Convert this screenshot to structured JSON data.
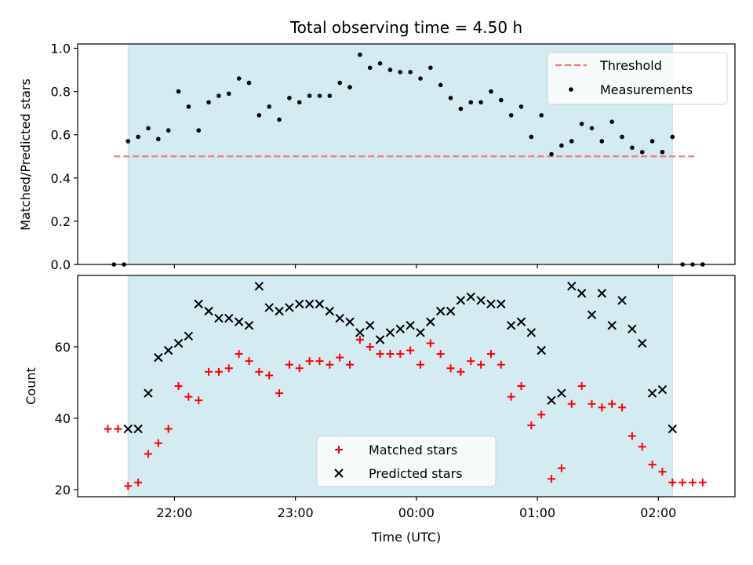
{
  "title": "Total observing time = 4.50 h",
  "colors": {
    "span": "#d4ebf1",
    "threshold": "#f47b7b",
    "measurement": "#000000",
    "matched": "#ff0000",
    "predicted": "#000000"
  },
  "chart_data": [
    {
      "type": "scatter",
      "ylabel": "Matched/Predicted stars",
      "xlabel": "",
      "ylim": [
        0,
        1.02
      ],
      "xlim": [
        "21:12",
        "02:38"
      ],
      "yticks": [
        "0.0",
        "0.2",
        "0.4",
        "0.6",
        "0.8",
        "1.0"
      ],
      "observing_window": [
        "21:37",
        "02:07"
      ],
      "threshold": {
        "y": 0.5,
        "x_range": [
          "21:30",
          "02:18"
        ]
      },
      "legend": {
        "position": "top-right",
        "entries": [
          "Threshold",
          "Measurements"
        ]
      },
      "series": [
        {
          "name": "Measurements",
          "x": [
            "21:30",
            "21:35",
            "21:37",
            "21:42",
            "21:47",
            "21:52",
            "21:57",
            "22:02",
            "22:07",
            "22:12",
            "22:17",
            "22:22",
            "22:27",
            "22:32",
            "22:37",
            "22:42",
            "22:47",
            "22:52",
            "22:57",
            "23:02",
            "23:07",
            "23:12",
            "23:17",
            "23:22",
            "23:27",
            "23:32",
            "23:37",
            "23:42",
            "23:47",
            "23:52",
            "23:57",
            "00:02",
            "00:07",
            "00:12",
            "00:17",
            "00:22",
            "00:27",
            "00:32",
            "00:37",
            "00:42",
            "00:47",
            "00:52",
            "00:57",
            "01:02",
            "01:07",
            "01:12",
            "01:17",
            "01:22",
            "01:27",
            "01:32",
            "01:37",
            "01:42",
            "01:47",
            "01:52",
            "01:57",
            "02:02",
            "02:07",
            "02:12",
            "02:17",
            "02:22"
          ],
          "y": [
            0.0,
            0.0,
            0.57,
            0.59,
            0.63,
            0.58,
            0.62,
            0.8,
            0.73,
            0.62,
            0.75,
            0.78,
            0.79,
            0.86,
            0.84,
            0.69,
            0.73,
            0.67,
            0.77,
            0.75,
            0.78,
            0.78,
            0.78,
            0.84,
            0.82,
            0.97,
            0.91,
            0.93,
            0.9,
            0.89,
            0.89,
            0.86,
            0.91,
            0.83,
            0.77,
            0.72,
            0.75,
            0.75,
            0.8,
            0.76,
            0.69,
            0.73,
            0.59,
            0.69,
            0.51,
            0.55,
            0.57,
            0.65,
            0.63,
            0.57,
            0.66,
            0.59,
            0.54,
            0.52,
            0.57,
            0.52,
            0.59,
            0.0,
            0.0,
            0.0
          ]
        }
      ]
    },
    {
      "type": "scatter",
      "ylabel": "Count",
      "xlabel": "Time (UTC)",
      "ylim": [
        18,
        80
      ],
      "xlim": [
        "21:12",
        "02:38"
      ],
      "xticks": [
        "22:00",
        "23:00",
        "00:00",
        "01:00",
        "02:00"
      ],
      "yticks": [
        "20",
        "40",
        "60"
      ],
      "observing_window": [
        "21:37",
        "02:07"
      ],
      "legend": {
        "position": "bottom-center",
        "entries": [
          "Matched stars",
          "Predicted stars"
        ]
      },
      "series": [
        {
          "name": "Matched stars",
          "marker": "plus",
          "x": [
            "21:27",
            "21:32",
            "21:37",
            "21:42",
            "21:47",
            "21:52",
            "21:57",
            "22:02",
            "22:07",
            "22:12",
            "22:17",
            "22:22",
            "22:27",
            "22:32",
            "22:37",
            "22:42",
            "22:47",
            "22:52",
            "22:57",
            "23:02",
            "23:07",
            "23:12",
            "23:17",
            "23:22",
            "23:27",
            "23:32",
            "23:37",
            "23:42",
            "23:47",
            "23:52",
            "23:57",
            "00:02",
            "00:07",
            "00:12",
            "00:17",
            "00:22",
            "00:27",
            "00:32",
            "00:37",
            "00:42",
            "00:47",
            "00:52",
            "00:57",
            "01:02",
            "01:07",
            "01:12",
            "01:17",
            "01:22",
            "01:27",
            "01:32",
            "01:37",
            "01:42",
            "01:47",
            "01:52",
            "01:57",
            "02:02",
            "02:07",
            "02:12",
            "02:17",
            "02:22"
          ],
          "y": [
            37,
            37,
            21,
            22,
            30,
            33,
            37,
            49,
            46,
            45,
            53,
            53,
            54,
            58,
            56,
            53,
            52,
            47,
            55,
            54,
            56,
            56,
            55,
            57,
            55,
            62,
            60,
            58,
            58,
            58,
            59,
            55,
            61,
            58,
            54,
            53,
            56,
            55,
            58,
            55,
            46,
            49,
            38,
            41,
            23,
            26,
            44,
            49,
            44,
            43,
            44,
            43,
            35,
            32,
            27,
            25,
            22,
            22,
            22,
            22
          ]
        },
        {
          "name": "Predicted stars",
          "marker": "x",
          "x": [
            "21:37",
            "21:42",
            "21:47",
            "21:52",
            "21:57",
            "22:02",
            "22:07",
            "22:12",
            "22:17",
            "22:22",
            "22:27",
            "22:32",
            "22:37",
            "22:42",
            "22:47",
            "22:52",
            "22:57",
            "23:02",
            "23:07",
            "23:12",
            "23:17",
            "23:22",
            "23:27",
            "23:32",
            "23:37",
            "23:42",
            "23:47",
            "23:52",
            "23:57",
            "00:02",
            "00:07",
            "00:12",
            "00:17",
            "00:22",
            "00:27",
            "00:32",
            "00:37",
            "00:42",
            "00:47",
            "00:52",
            "00:57",
            "01:02",
            "01:07",
            "01:12",
            "01:17",
            "01:22",
            "01:27",
            "01:32",
            "01:37",
            "01:42",
            "01:47",
            "01:52",
            "01:57",
            "02:02",
            "02:07"
          ],
          "y": [
            37,
            37,
            47,
            57,
            59,
            61,
            63,
            72,
            70,
            68,
            68,
            67,
            66,
            77,
            71,
            70,
            71,
            72,
            72,
            72,
            70,
            68,
            67,
            64,
            66,
            62,
            64,
            65,
            66,
            64,
            67,
            70,
            70,
            73,
            74,
            73,
            72,
            72,
            66,
            67,
            64,
            59,
            45,
            47,
            77,
            75,
            69,
            75,
            66,
            73,
            65,
            61,
            47,
            48,
            37
          ]
        }
      ]
    }
  ]
}
